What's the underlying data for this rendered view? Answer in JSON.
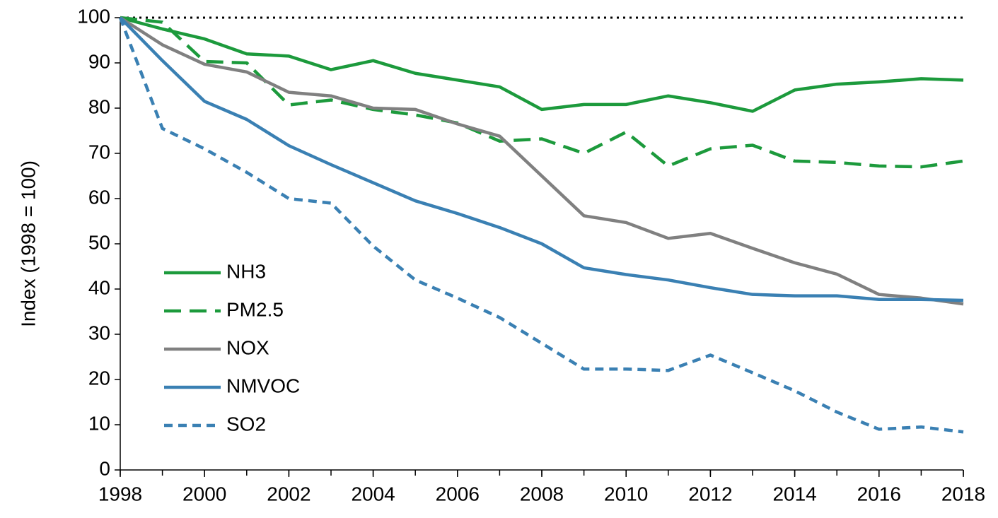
{
  "chart_data": {
    "type": "line",
    "ylabel": "Index (1998 = 100)",
    "x": [
      1998,
      1999,
      2000,
      2001,
      2002,
      2003,
      2004,
      2005,
      2006,
      2007,
      2008,
      2009,
      2010,
      2011,
      2012,
      2013,
      2014,
      2015,
      2016,
      2017,
      2018
    ],
    "xlim": [
      1998,
      2018
    ],
    "xticks": [
      1998,
      2000,
      2002,
      2004,
      2006,
      2008,
      2010,
      2012,
      2014,
      2016,
      2018
    ],
    "ylim": [
      0,
      100
    ],
    "yticks": [
      0,
      10,
      20,
      30,
      40,
      50,
      60,
      70,
      80,
      90,
      100
    ],
    "grid": false,
    "legend": "lower left",
    "reference_line": {
      "value": 100,
      "linestyle": "dotted",
      "color": "#000000"
    },
    "series": [
      {
        "name": "NH3",
        "color": "#1c9a3c",
        "linestyle": "solid",
        "values": [
          100,
          97.5,
          95.3,
          92,
          91.5,
          88.5,
          90.5,
          87.7,
          86.2,
          84.7,
          79.7,
          80.8,
          80.8,
          82.7,
          81.2,
          79.3,
          84,
          85.3,
          85.8,
          86.5,
          86.2
        ]
      },
      {
        "name": "PM2.5",
        "color": "#1c9a3c",
        "linestyle": "dashed",
        "values": [
          100,
          99,
          90.3,
          90,
          80.7,
          81.8,
          79.7,
          78.5,
          76.7,
          72.7,
          73.2,
          70,
          74.7,
          67.2,
          71,
          71.8,
          68.3,
          68,
          67.2,
          67,
          68.3
        ]
      },
      {
        "name": "NOX",
        "color": "#808080",
        "linestyle": "solid",
        "values": [
          100,
          94,
          89.7,
          88,
          83.5,
          82.7,
          80,
          79.7,
          76.5,
          73.8,
          65,
          56.2,
          54.7,
          51.2,
          52.3,
          49,
          45.8,
          43.3,
          38.8,
          38,
          36.7
        ]
      },
      {
        "name": "NMVOC",
        "color": "#3a80b3",
        "linestyle": "solid",
        "values": [
          100,
          90.5,
          81.5,
          77.5,
          71.7,
          67.5,
          63.5,
          59.5,
          56.7,
          53.6,
          50,
          44.7,
          43.2,
          42,
          40.3,
          38.8,
          38.5,
          38.5,
          37.7,
          37.7,
          37.5
        ]
      },
      {
        "name": "SO2",
        "color": "#3a80b3",
        "linestyle": "short-dashed",
        "values": [
          100,
          75.5,
          71,
          65.8,
          60,
          59,
          49.5,
          42,
          38,
          33.7,
          28,
          22.3,
          22.3,
          22,
          25.4,
          21.5,
          17.5,
          12.8,
          9,
          9.5,
          8.4
        ]
      }
    ]
  }
}
